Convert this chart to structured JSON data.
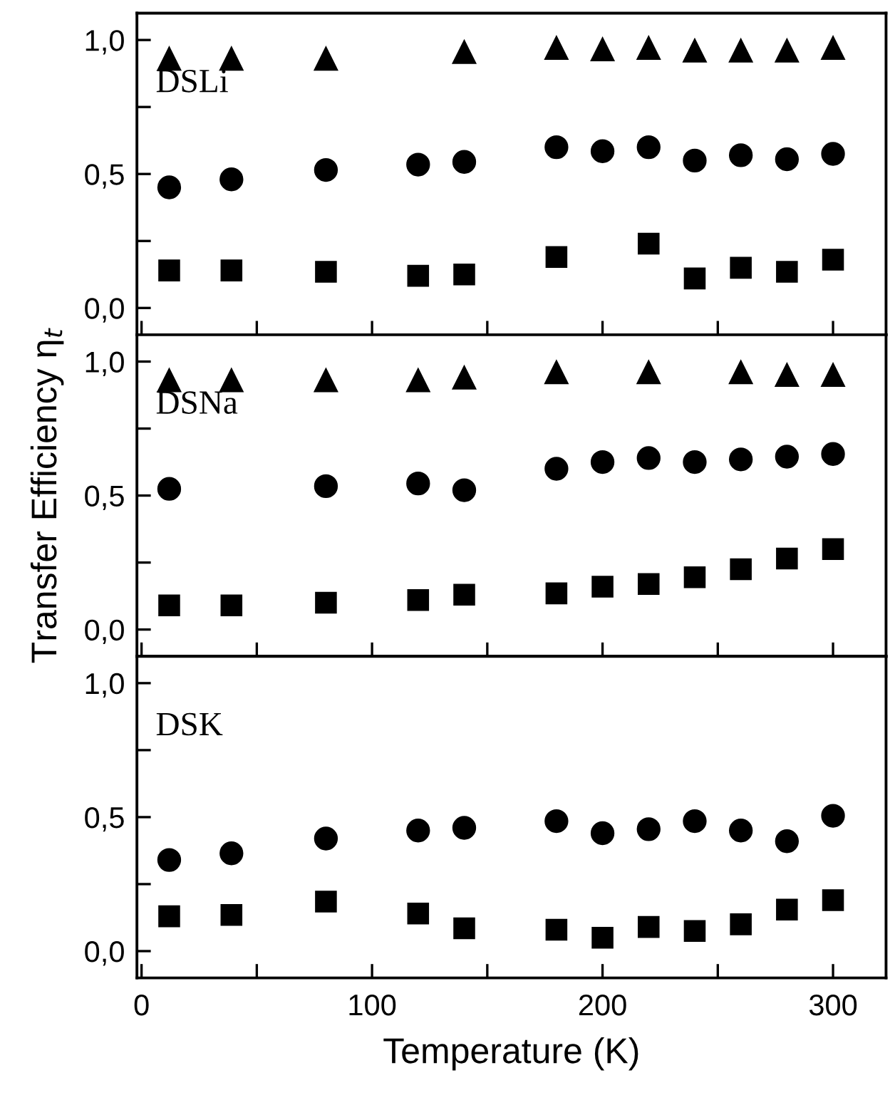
{
  "chart_data": [
    {
      "type": "scatter",
      "annotations": [
        "DSLi"
      ],
      "x": [
        12,
        39,
        80,
        120,
        140,
        180,
        200,
        220,
        240,
        260,
        280,
        300
      ],
      "xlim": [
        -2,
        323
      ],
      "xticks": [
        0,
        {
          "value": 50,
          "label": null
        },
        100,
        {
          "value": 150,
          "label": null
        },
        200,
        {
          "value": 250,
          "label": null
        },
        300
      ],
      "ylim": [
        -0.1,
        1.1
      ],
      "yticks": [
        {
          "value": 0,
          "label": "0,0"
        },
        {
          "value": 0.25,
          "label": null
        },
        {
          "value": 0.5,
          "label": "0,5"
        },
        {
          "value": 0.75,
          "label": null
        },
        {
          "value": 1.0,
          "label": "1,0"
        }
      ],
      "tick_labels": "y",
      "grid": false,
      "legend": false,
      "series": [
        {
          "color": "#000000",
          "marker": "triangle",
          "values": [
            0.93,
            0.93,
            0.93,
            null,
            0.955,
            0.97,
            0.965,
            0.97,
            0.96,
            0.96,
            0.96,
            0.97
          ]
        },
        {
          "color": "#000000",
          "marker": "circle",
          "values": [
            0.45,
            0.48,
            0.515,
            0.535,
            0.545,
            0.6,
            0.585,
            0.6,
            0.55,
            0.57,
            0.555,
            0.575
          ]
        },
        {
          "color": "#000000",
          "marker": "square",
          "values": [
            0.14,
            0.14,
            0.135,
            0.12,
            0.125,
            0.19,
            null,
            0.24,
            0.11,
            0.15,
            0.135,
            0.18
          ]
        }
      ]
    },
    {
      "type": "scatter",
      "annotations": [
        "DSNa"
      ],
      "ylabel": "Transfer Efficiency η$_{t}$",
      "x": [
        12,
        39,
        80,
        120,
        140,
        180,
        200,
        220,
        240,
        260,
        280,
        300
      ],
      "xlim": [
        -2,
        323
      ],
      "xticks": [
        0,
        {
          "value": 50,
          "label": null
        },
        100,
        {
          "value": 150,
          "label": null
        },
        200,
        {
          "value": 250,
          "label": null
        },
        300
      ],
      "ylim": [
        -0.1,
        1.1
      ],
      "yticks": [
        {
          "value": 0,
          "label": "0,0"
        },
        {
          "value": 0.25,
          "label": null
        },
        {
          "value": 0.5,
          "label": "0,5"
        },
        {
          "value": 0.75,
          "label": null
        },
        {
          "value": 1.0,
          "label": "1,0"
        }
      ],
      "tick_labels": "y",
      "grid": false,
      "legend": false,
      "series": [
        {
          "color": "#000000",
          "marker": "triangle",
          "values": [
            0.93,
            0.93,
            0.93,
            0.93,
            0.94,
            0.96,
            null,
            0.96,
            null,
            0.96,
            0.95,
            0.95
          ]
        },
        {
          "color": "#000000",
          "marker": "circle",
          "values": [
            0.525,
            null,
            0.535,
            0.545,
            0.52,
            0.6,
            0.625,
            0.64,
            0.625,
            0.635,
            0.645,
            0.655
          ]
        },
        {
          "color": "#000000",
          "marker": "square",
          "values": [
            0.09,
            0.09,
            0.1,
            0.11,
            0.13,
            0.135,
            0.16,
            0.17,
            0.195,
            0.225,
            0.265,
            0.3
          ]
        }
      ]
    },
    {
      "type": "scatter",
      "annotations": [
        "DSK"
      ],
      "xlabel": "Temperature (K)",
      "x": [
        12,
        39,
        80,
        120,
        140,
        180,
        200,
        220,
        240,
        260,
        280,
        300
      ],
      "xlim": [
        -2,
        323
      ],
      "xticks": [
        0,
        {
          "value": 50,
          "label": null
        },
        100,
        {
          "value": 150,
          "label": null
        },
        200,
        {
          "value": 250,
          "label": null
        },
        300
      ],
      "ylim": [
        -0.1,
        1.1
      ],
      "yticks": [
        {
          "value": 0,
          "label": "0,0"
        },
        {
          "value": 0.25,
          "label": null
        },
        {
          "value": 0.5,
          "label": "0,5"
        },
        {
          "value": 0.75,
          "label": null
        },
        {
          "value": 1.0,
          "label": "1,0"
        }
      ],
      "grid": false,
      "legend": false,
      "series": [
        {
          "color": "#000000",
          "marker": "circle",
          "values": [
            0.34,
            0.365,
            0.42,
            0.45,
            0.46,
            0.485,
            0.44,
            0.455,
            0.485,
            0.45,
            0.41,
            0.505
          ]
        },
        {
          "color": "#000000",
          "marker": "square",
          "values": [
            0.13,
            0.135,
            0.185,
            0.14,
            0.085,
            0.08,
            0.05,
            0.09,
            0.075,
            0.1,
            0.155,
            0.19
          ]
        }
      ]
    }
  ]
}
